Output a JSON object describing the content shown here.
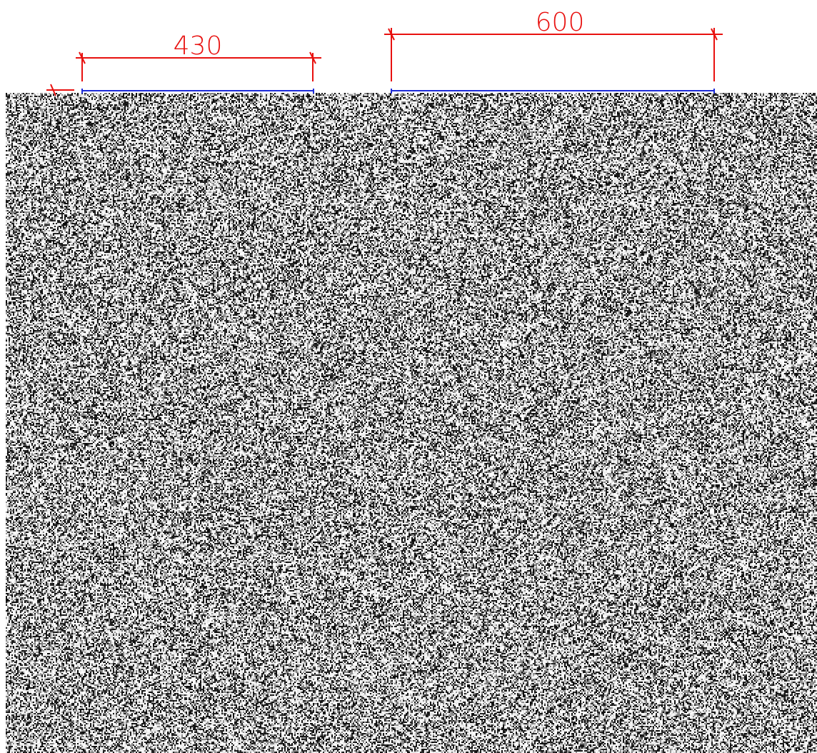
{
  "dimensions": [
    {
      "label": "430",
      "value": 430
    },
    {
      "label": "600",
      "value": 600
    }
  ],
  "texture": {
    "name": "speckled-granite-surface",
    "dark_color": "#1a1a1a",
    "mid_color": "#8c8c8c",
    "light_color": "#f2f2f2"
  },
  "colors": {
    "dimension": "#e8110f",
    "edge": "#1d2bd8",
    "background": "#ffffff"
  }
}
